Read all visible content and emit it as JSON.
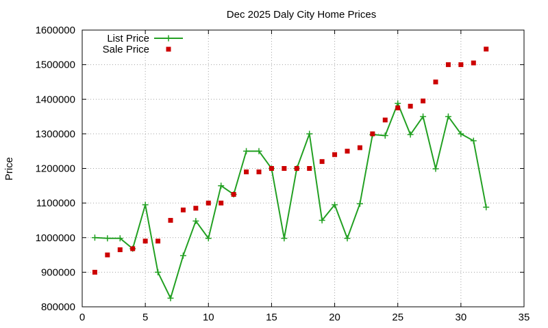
{
  "chart_data": {
    "type": "line",
    "title": "Dec 2025 Daly City Home Prices",
    "xlabel": "",
    "ylabel": "Price",
    "xlim": [
      0,
      35
    ],
    "ylim": [
      800000,
      1600000
    ],
    "xticks": [
      0,
      5,
      10,
      15,
      20,
      25,
      30,
      35
    ],
    "yticks": [
      800000,
      900000,
      1000000,
      1100000,
      1200000,
      1300000,
      1400000,
      1500000,
      1600000
    ],
    "grid": true,
    "legend_position": "top-left",
    "series": [
      {
        "name": "List Price",
        "style": "line-with-plus-markers",
        "color": "#22a022",
        "x": [
          1,
          2,
          3,
          4,
          5,
          6,
          7,
          8,
          9,
          10,
          11,
          12,
          13,
          14,
          15,
          16,
          17,
          18,
          19,
          20,
          21,
          22,
          23,
          24,
          25,
          26,
          27,
          28,
          29,
          30,
          31,
          32
        ],
        "y": [
          1000000,
          998000,
          998000,
          968000,
          1095000,
          900000,
          825000,
          948000,
          1048000,
          998000,
          1150000,
          1125000,
          1250000,
          1250000,
          1200000,
          998000,
          1200000,
          1300000,
          1050000,
          1095000,
          998000,
          1098000,
          1298000,
          1295000,
          1388000,
          1298000,
          1350000,
          1199000,
          1350000,
          1300000,
          1280000,
          1088000
        ]
      },
      {
        "name": "Sale Price",
        "style": "square-markers",
        "color": "#cc0000",
        "x": [
          1,
          2,
          3,
          4,
          5,
          6,
          7,
          8,
          9,
          10,
          11,
          12,
          13,
          14,
          15,
          16,
          17,
          18,
          19,
          20,
          21,
          22,
          23,
          24,
          25,
          26,
          27,
          28,
          29,
          30,
          31,
          32
        ],
        "y": [
          900000,
          950000,
          965000,
          968000,
          990000,
          990000,
          1050000,
          1080000,
          1085000,
          1100000,
          1100000,
          1125000,
          1190000,
          1190000,
          1200000,
          1200000,
          1200000,
          1200000,
          1220000,
          1240000,
          1250000,
          1260000,
          1300000,
          1340000,
          1375000,
          1380000,
          1395000,
          1450000,
          1500000,
          1500000,
          1505000,
          1545000
        ]
      }
    ]
  }
}
